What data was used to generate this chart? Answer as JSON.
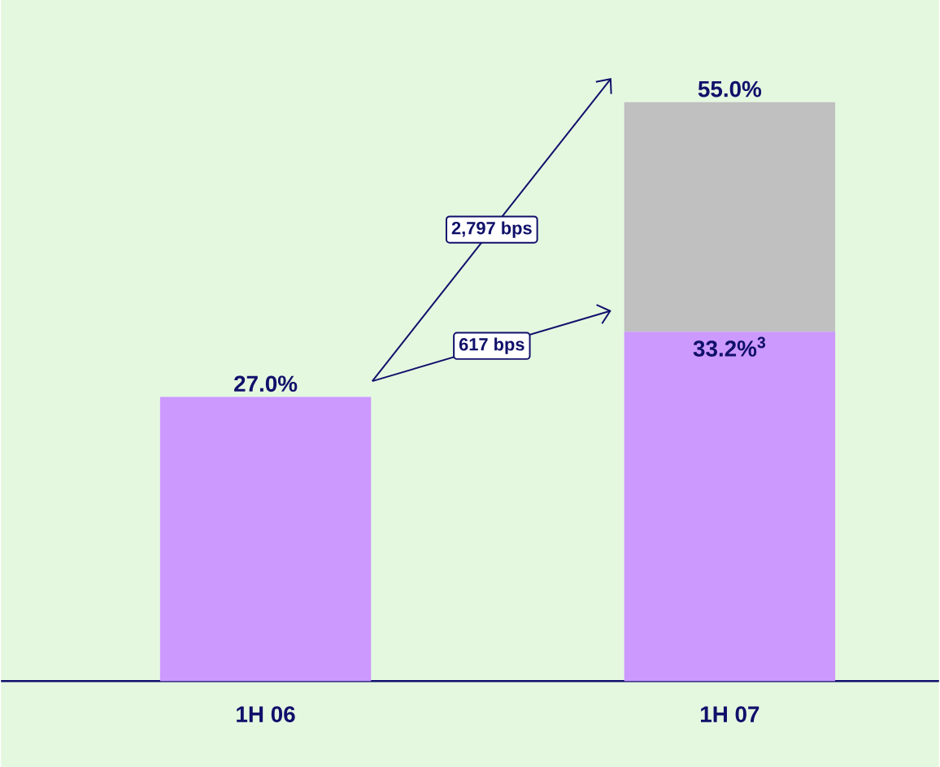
{
  "chart_data": {
    "type": "bar",
    "stacked": true,
    "categories": [
      "1H 06",
      "1H 07"
    ],
    "series": [
      {
        "color": "#cc99ff",
        "values": [
          27.0,
          33.2
        ],
        "value_labels": [
          "27.0%",
          "33.2%$^{3}$"
        ]
      },
      {
        "color": "#c0c0c0",
        "values": [
          null,
          21.8
        ]
      }
    ],
    "totals": [
      null,
      "55.0%"
    ],
    "annotations": [
      "2,797 bps",
      "617 bps"
    ]
  }
}
